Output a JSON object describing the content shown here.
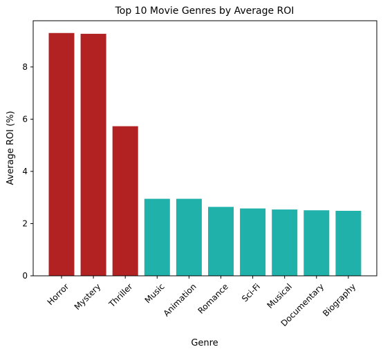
{
  "chart_data": {
    "type": "bar",
    "title": "Top 10 Movie Genres by Average ROI",
    "xlabel": "Genre",
    "ylabel": "Average ROI (%)",
    "categories": [
      "Horror",
      "Mystery",
      "Thriller",
      "Music",
      "Animation",
      "Romance",
      "Sci-Fi",
      "Musical",
      "Documentary",
      "Biography"
    ],
    "values": [
      9.3,
      9.27,
      5.73,
      2.95,
      2.95,
      2.64,
      2.58,
      2.54,
      2.51,
      2.49
    ],
    "colors": [
      "#b22222",
      "#b22222",
      "#b22222",
      "#20b2aa",
      "#20b2aa",
      "#20b2aa",
      "#20b2aa",
      "#20b2aa",
      "#20b2aa",
      "#20b2aa"
    ],
    "ylim": [
      0,
      9.77
    ],
    "yticks": [
      0,
      2,
      4,
      6,
      8
    ],
    "grid": false,
    "legend": "none"
  }
}
